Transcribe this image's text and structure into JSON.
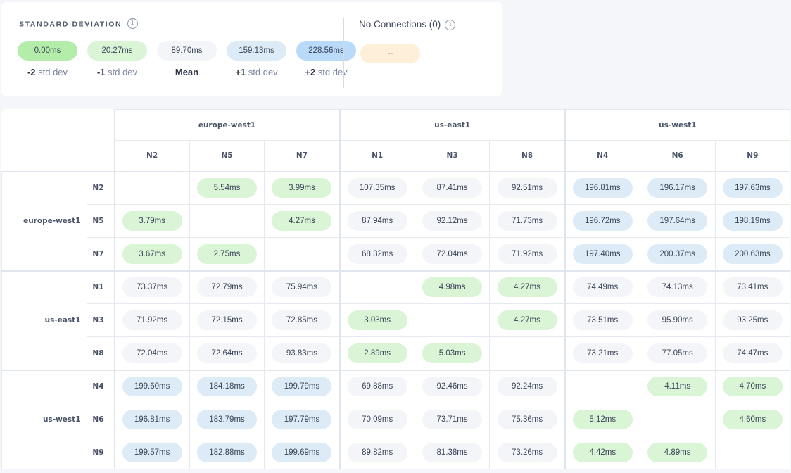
{
  "legend": {
    "title": "STANDARD DEVIATION",
    "items": [
      {
        "value": "0.00ms",
        "prefix": "-2",
        "label": "std dev",
        "color": "#b4edaa"
      },
      {
        "value": "20.27ms",
        "prefix": "-1",
        "label": "std dev",
        "color": "#daf5d6"
      },
      {
        "value": "89.70ms",
        "prefix": "Mean",
        "label": "",
        "color": "#f3f5f9"
      },
      {
        "value": "159.13ms",
        "prefix": "+1",
        "label": "std dev",
        "color": "#ddebf7"
      },
      {
        "value": "228.56ms",
        "prefix": "+2",
        "label": "std dev",
        "color": "#b9daf9"
      }
    ],
    "no_connections": {
      "title": "No Connections (0)",
      "value": "--",
      "color": "#fdefd8"
    }
  },
  "matrix": {
    "regions": [
      {
        "name": "europe-west1",
        "nodes": [
          "N2",
          "N5",
          "N7"
        ]
      },
      {
        "name": "us-east1",
        "nodes": [
          "N1",
          "N3",
          "N8"
        ]
      },
      {
        "name": "us-west1",
        "nodes": [
          "N4",
          "N6",
          "N9"
        ]
      }
    ],
    "rows": [
      [
        [
          "",
          ""
        ],
        [
          "5.54ms",
          "g"
        ],
        [
          "3.99ms",
          "g"
        ],
        [
          "107.35ms",
          "n"
        ],
        [
          "87.41ms",
          "n"
        ],
        [
          "92.51ms",
          "n"
        ],
        [
          "196.81ms",
          "b"
        ],
        [
          "196.17ms",
          "b"
        ],
        [
          "197.63ms",
          "b"
        ]
      ],
      [
        [
          "3.79ms",
          "g"
        ],
        [
          "",
          ""
        ],
        [
          "4.27ms",
          "g"
        ],
        [
          "87.94ms",
          "n"
        ],
        [
          "92.12ms",
          "n"
        ],
        [
          "71.73ms",
          "n"
        ],
        [
          "196.72ms",
          "b"
        ],
        [
          "197.64ms",
          "b"
        ],
        [
          "198.19ms",
          "b"
        ]
      ],
      [
        [
          "3.67ms",
          "g"
        ],
        [
          "2.75ms",
          "g"
        ],
        [
          "",
          ""
        ],
        [
          "68.32ms",
          "n"
        ],
        [
          "72.04ms",
          "n"
        ],
        [
          "71.92ms",
          "n"
        ],
        [
          "197.40ms",
          "b"
        ],
        [
          "200.37ms",
          "b"
        ],
        [
          "200.63ms",
          "b"
        ]
      ],
      [
        [
          "73.37ms",
          "n"
        ],
        [
          "72.79ms",
          "n"
        ],
        [
          "75.94ms",
          "n"
        ],
        [
          "",
          ""
        ],
        [
          "4.98ms",
          "g"
        ],
        [
          "4.27ms",
          "g"
        ],
        [
          "74.49ms",
          "n"
        ],
        [
          "74.13ms",
          "n"
        ],
        [
          "73.41ms",
          "n"
        ]
      ],
      [
        [
          "71.92ms",
          "n"
        ],
        [
          "72.15ms",
          "n"
        ],
        [
          "72.85ms",
          "n"
        ],
        [
          "3.03ms",
          "g"
        ],
        [
          "",
          ""
        ],
        [
          "4.27ms",
          "g"
        ],
        [
          "73.51ms",
          "n"
        ],
        [
          "95.90ms",
          "n"
        ],
        [
          "93.25ms",
          "n"
        ]
      ],
      [
        [
          "72.04ms",
          "n"
        ],
        [
          "72.64ms",
          "n"
        ],
        [
          "93.83ms",
          "n"
        ],
        [
          "2.89ms",
          "g"
        ],
        [
          "5.03ms",
          "g"
        ],
        [
          "",
          ""
        ],
        [
          "73.21ms",
          "n"
        ],
        [
          "77.05ms",
          "n"
        ],
        [
          "74.47ms",
          "n"
        ]
      ],
      [
        [
          "199.60ms",
          "b"
        ],
        [
          "184.18ms",
          "b"
        ],
        [
          "199.79ms",
          "b"
        ],
        [
          "69.88ms",
          "n"
        ],
        [
          "92.46ms",
          "n"
        ],
        [
          "92.24ms",
          "n"
        ],
        [
          "",
          ""
        ],
        [
          "4.11ms",
          "g"
        ],
        [
          "4.70ms",
          "g"
        ]
      ],
      [
        [
          "196.81ms",
          "b"
        ],
        [
          "183.79ms",
          "b"
        ],
        [
          "197.79ms",
          "b"
        ],
        [
          "70.09ms",
          "n"
        ],
        [
          "73.71ms",
          "n"
        ],
        [
          "75.36ms",
          "n"
        ],
        [
          "5.12ms",
          "g"
        ],
        [
          "",
          ""
        ],
        [
          "4.60ms",
          "g"
        ]
      ],
      [
        [
          "199.57ms",
          "b"
        ],
        [
          "182.88ms",
          "b"
        ],
        [
          "199.69ms",
          "b"
        ],
        [
          "89.82ms",
          "n"
        ],
        [
          "81.38ms",
          "n"
        ],
        [
          "73.26ms",
          "n"
        ],
        [
          "4.42ms",
          "g"
        ],
        [
          "4.89ms",
          "g"
        ],
        [
          "",
          ""
        ]
      ]
    ]
  }
}
